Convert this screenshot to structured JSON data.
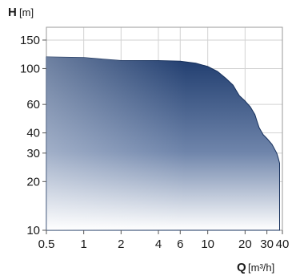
{
  "chart_data": {
    "type": "area",
    "title": "",
    "xlabel": "Q",
    "xunit": "[m³/h]",
    "ylabel": "H",
    "yunit": "[m]",
    "xscale": "log",
    "yscale": "log",
    "xlim": [
      0.5,
      40
    ],
    "ylim": [
      10,
      180
    ],
    "grid": true,
    "x_ticks": [
      0.5,
      1,
      2,
      4,
      6,
      10,
      20,
      40
    ],
    "x_tick_labels": [
      "0.5",
      "1",
      "2",
      "4",
      "6",
      "10",
      "20",
      "30",
      "40"
    ],
    "x_tick_label_values": [
      0.5,
      1,
      2,
      4,
      6,
      10,
      20,
      30,
      40
    ],
    "y_ticks": [
      10,
      20,
      30,
      40,
      60,
      100,
      150
    ],
    "y_tick_labels": [
      "10",
      "20",
      "30",
      "40",
      "60",
      "100",
      "150"
    ],
    "fill_colors": {
      "top": "#1f3c6e",
      "bottom": "#ffffff"
    },
    "series": [
      {
        "x": [
          0.5,
          1,
          1.5,
          2,
          4,
          6,
          8,
          10,
          12,
          14,
          16,
          17,
          18,
          20,
          22,
          24,
          25,
          26,
          28,
          30,
          33,
          36,
          37,
          38
        ],
        "y": [
          118,
          117,
          114,
          112,
          112,
          111,
          108,
          103,
          96,
          87,
          79,
          73,
          68,
          63,
          58,
          52,
          47,
          43,
          39,
          37,
          34,
          30,
          28,
          26
        ]
      }
    ]
  }
}
